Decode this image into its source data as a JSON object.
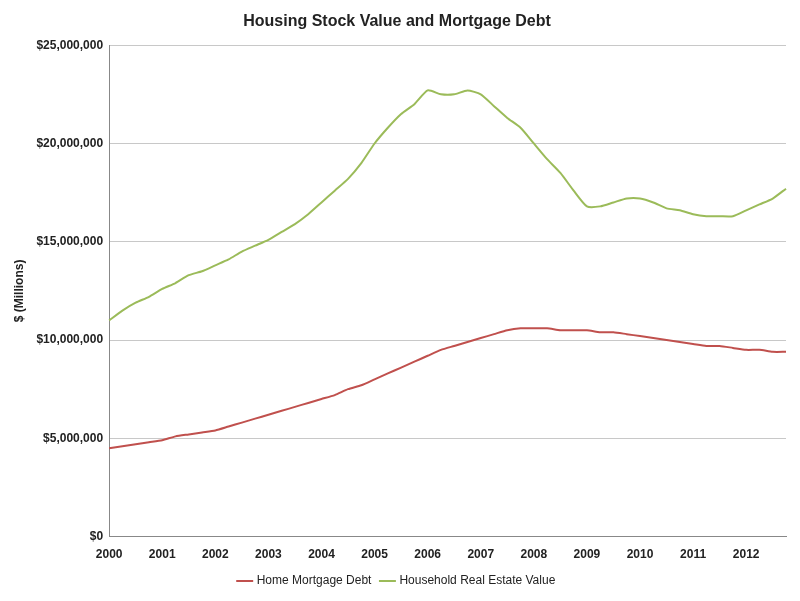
{
  "chart_data": {
    "type": "line",
    "title": "Housing Stock Value and Mortgage Debt",
    "y_label": "$ (Millions)",
    "categories": [
      "2000",
      null,
      null,
      null,
      "2001",
      null,
      null,
      null,
      "2002",
      null,
      null,
      null,
      "2003",
      null,
      null,
      null,
      "2004",
      null,
      null,
      null,
      "2005",
      null,
      null,
      null,
      "2006",
      null,
      null,
      null,
      "2007",
      null,
      null,
      null,
      "2008",
      null,
      null,
      null,
      "2009",
      null,
      null,
      null,
      "2010",
      null,
      null,
      null,
      "2011",
      null,
      null,
      null,
      "2012",
      null,
      null,
      null
    ],
    "series": [
      {
        "name": "Home Mortgage Debt",
        "color": "#c0504d",
        "values": [
          4500000,
          4600000,
          4700000,
          4800000,
          4900000,
          5100000,
          5200000,
          5300000,
          5400000,
          5600000,
          5800000,
          6000000,
          6200000,
          6400000,
          6600000,
          6800000,
          7000000,
          7200000,
          7500000,
          7700000,
          8000000,
          8300000,
          8600000,
          8900000,
          9200000,
          9500000,
          9700000,
          9900000,
          10100000,
          10300000,
          10500000,
          10600000,
          10600000,
          10600000,
          10500000,
          10500000,
          10500000,
          10400000,
          10400000,
          10300000,
          10200000,
          10100000,
          10000000,
          9900000,
          9800000,
          9700000,
          9700000,
          9600000,
          9500000,
          9500000,
          9400000,
          9400000
        ]
      },
      {
        "name": "Household Real Estate Value",
        "color": "#9bbb59",
        "values": [
          11000000,
          11500000,
          11900000,
          12200000,
          12600000,
          12900000,
          13300000,
          13500000,
          13800000,
          14100000,
          14500000,
          14800000,
          15100000,
          15500000,
          15900000,
          16400000,
          17000000,
          17600000,
          18200000,
          19000000,
          20000000,
          20800000,
          21500000,
          22000000,
          22700000,
          22500000,
          22500000,
          22700000,
          22500000,
          21900000,
          21300000,
          20800000,
          20000000,
          19200000,
          18500000,
          17600000,
          16800000,
          16800000,
          17000000,
          17200000,
          17200000,
          17000000,
          16700000,
          16600000,
          16400000,
          16300000,
          16300000,
          16300000,
          16600000,
          16900000,
          17200000,
          17700000
        ]
      }
    ],
    "ylim": [
      0,
      25000000
    ],
    "yticks": [
      {
        "value": 0,
        "label": "$0"
      },
      {
        "value": 5000000,
        "label": "$5,000,000"
      },
      {
        "value": 10000000,
        "label": "$10,000,000"
      },
      {
        "value": 15000000,
        "label": "$15,000,000"
      },
      {
        "value": 20000000,
        "label": "$20,000,000"
      },
      {
        "value": 25000000,
        "label": "$25,000,000"
      }
    ],
    "grid": true,
    "legend": "bottom"
  }
}
